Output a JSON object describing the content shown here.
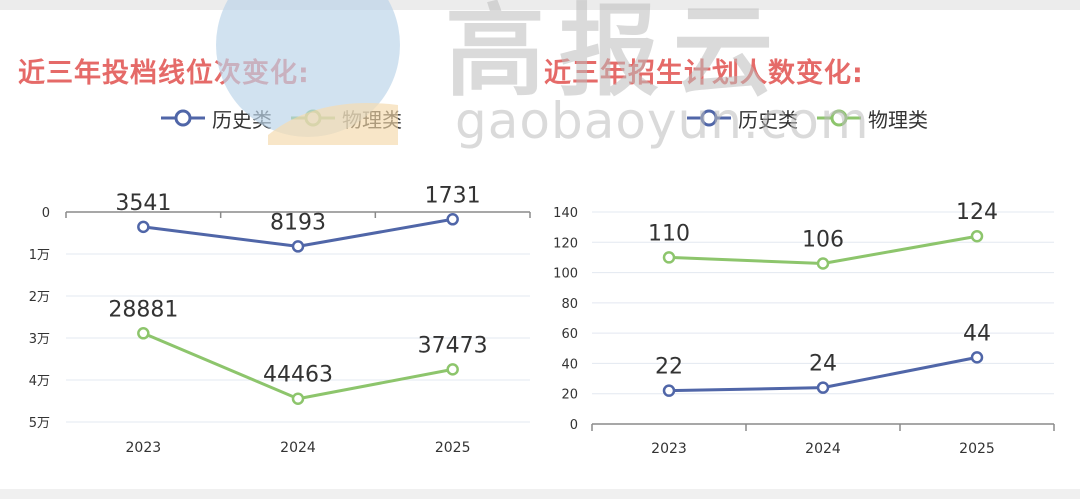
{
  "watermark": {
    "brand_text": "高报云",
    "site_text": "gaobaoyun.com"
  },
  "colors": {
    "history": "#5066a8",
    "physics": "#8dc56c",
    "title": "#e56a68"
  },
  "chart_data": [
    {
      "type": "line",
      "title": "近三年投档线位次变化:",
      "categories": [
        "2023",
        "2024",
        "2025"
      ],
      "y_inverted": true,
      "ylim": [
        0,
        50000
      ],
      "y_ticks": [
        {
          "value": 0,
          "label": "0"
        },
        {
          "value": 10000,
          "label": "1万"
        },
        {
          "value": 20000,
          "label": "2万"
        },
        {
          "value": 30000,
          "label": "3万"
        },
        {
          "value": 40000,
          "label": "4万"
        },
        {
          "value": 50000,
          "label": "5万"
        }
      ],
      "legend_position": "top-center",
      "grid": true,
      "series": [
        {
          "name": "历史类",
          "color": "#5066a8",
          "values": [
            3541,
            8193,
            1731
          ],
          "labels": [
            "3541",
            "8193",
            "1731"
          ]
        },
        {
          "name": "物理类",
          "color": "#8dc56c",
          "values": [
            28881,
            44463,
            37473
          ],
          "labels": [
            "28881",
            "44463",
            "37473"
          ]
        }
      ]
    },
    {
      "type": "line",
      "title": "近三年招生计划人数变化:",
      "categories": [
        "2023",
        "2024",
        "2025"
      ],
      "y_inverted": false,
      "ylim": [
        0,
        140
      ],
      "y_ticks": [
        {
          "value": 0,
          "label": "0"
        },
        {
          "value": 20,
          "label": "20"
        },
        {
          "value": 40,
          "label": "40"
        },
        {
          "value": 60,
          "label": "60"
        },
        {
          "value": 80,
          "label": "80"
        },
        {
          "value": 100,
          "label": "100"
        },
        {
          "value": 120,
          "label": "120"
        },
        {
          "value": 140,
          "label": "140"
        }
      ],
      "legend_position": "top-center",
      "grid": true,
      "series": [
        {
          "name": "历史类",
          "color": "#5066a8",
          "values": [
            22,
            24,
            44
          ],
          "labels": [
            "22",
            "24",
            "44"
          ]
        },
        {
          "name": "物理类",
          "color": "#8dc56c",
          "values": [
            110,
            106,
            124
          ],
          "labels": [
            "110",
            "106",
            "124"
          ]
        }
      ]
    }
  ]
}
